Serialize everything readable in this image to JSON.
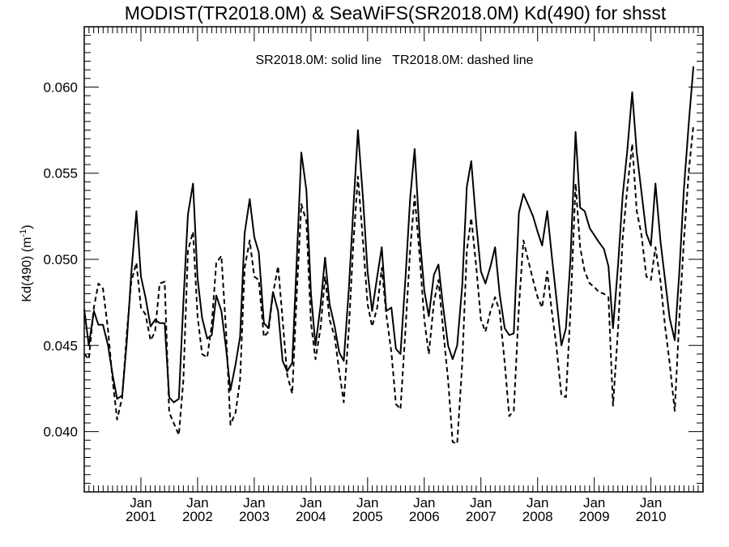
{
  "chart_data": {
    "type": "line",
    "title": "MODIST(TR2018.0M) & SeaWiFS(SR2018.0M)  Kd(490) for shsst",
    "legend_text": "SR2018.0M: solid line   TR2018.0M: dashed line",
    "ylabel": "Kd(490) (m",
    "ylabel_sup": "-1",
    "ylabel_close": ")",
    "ylim": [
      0.0365,
      0.0635
    ],
    "xlim": [
      2000.0,
      2010.92
    ],
    "y_ticks": [
      0.04,
      0.045,
      0.05,
      0.055,
      0.06
    ],
    "y_tick_labels": [
      "0.040",
      "0.045",
      "0.050",
      "0.055",
      "0.060"
    ],
    "x_ticks": [
      2001,
      2002,
      2003,
      2004,
      2005,
      2006,
      2007,
      2008,
      2009,
      2010
    ],
    "x_tick_month": "Jan",
    "x_tick_years": [
      "2001",
      "2002",
      "2003",
      "2004",
      "2005",
      "2006",
      "2007",
      "2008",
      "2009",
      "2010"
    ],
    "series": [
      {
        "style": "solid",
        "points": [
          [
            2000.0,
            0.0471
          ],
          [
            2000.08,
            0.045
          ],
          [
            2000.17,
            0.047
          ],
          [
            2000.25,
            0.0462
          ],
          [
            2000.33,
            0.0462
          ],
          [
            2000.42,
            0.045
          ],
          [
            2000.5,
            0.0433
          ],
          [
            2000.58,
            0.0419
          ],
          [
            2000.67,
            0.0421
          ],
          [
            2000.75,
            0.0452
          ],
          [
            2000.83,
            0.0492
          ],
          [
            2000.92,
            0.0528
          ],
          [
            2001.0,
            0.049
          ],
          [
            2001.08,
            0.0478
          ],
          [
            2001.17,
            0.0461
          ],
          [
            2001.25,
            0.0465
          ],
          [
            2001.33,
            0.0463
          ],
          [
            2001.42,
            0.0463
          ],
          [
            2001.5,
            0.042
          ],
          [
            2001.58,
            0.0417
          ],
          [
            2001.67,
            0.0419
          ],
          [
            2001.75,
            0.0475
          ],
          [
            2001.83,
            0.0526
          ],
          [
            2001.92,
            0.0544
          ],
          [
            2002.0,
            0.0489
          ],
          [
            2002.08,
            0.0466
          ],
          [
            2002.17,
            0.0454
          ],
          [
            2002.25,
            0.0456
          ],
          [
            2002.33,
            0.0479
          ],
          [
            2002.42,
            0.047
          ],
          [
            2002.5,
            0.0449
          ],
          [
            2002.58,
            0.0424
          ],
          [
            2002.67,
            0.0439
          ],
          [
            2002.75,
            0.0455
          ],
          [
            2002.83,
            0.0515
          ],
          [
            2002.92,
            0.0535
          ],
          [
            2003.0,
            0.0513
          ],
          [
            2003.08,
            0.0504
          ],
          [
            2003.17,
            0.0463
          ],
          [
            2003.25,
            0.046
          ],
          [
            2003.33,
            0.0481
          ],
          [
            2003.42,
            0.047
          ],
          [
            2003.5,
            0.0441
          ],
          [
            2003.58,
            0.0435
          ],
          [
            2003.67,
            0.044
          ],
          [
            2003.75,
            0.05
          ],
          [
            2003.83,
            0.0562
          ],
          [
            2003.92,
            0.054
          ],
          [
            2004.0,
            0.048
          ],
          [
            2004.08,
            0.045
          ],
          [
            2004.17,
            0.0473
          ],
          [
            2004.25,
            0.0501
          ],
          [
            2004.33,
            0.0474
          ],
          [
            2004.42,
            0.0461
          ],
          [
            2004.5,
            0.0446
          ],
          [
            2004.58,
            0.0441
          ],
          [
            2004.67,
            0.0483
          ],
          [
            2004.75,
            0.053
          ],
          [
            2004.83,
            0.0575
          ],
          [
            2004.92,
            0.0535
          ],
          [
            2005.0,
            0.0493
          ],
          [
            2005.08,
            0.047
          ],
          [
            2005.17,
            0.049
          ],
          [
            2005.25,
            0.0507
          ],
          [
            2005.33,
            0.047
          ],
          [
            2005.42,
            0.0472
          ],
          [
            2005.5,
            0.0448
          ],
          [
            2005.58,
            0.0445
          ],
          [
            2005.67,
            0.049
          ],
          [
            2005.75,
            0.0535
          ],
          [
            2005.83,
            0.0564
          ],
          [
            2005.92,
            0.0513
          ],
          [
            2006.0,
            0.0482
          ],
          [
            2006.08,
            0.0467
          ],
          [
            2006.17,
            0.0491
          ],
          [
            2006.25,
            0.0497
          ],
          [
            2006.33,
            0.0473
          ],
          [
            2006.42,
            0.045
          ],
          [
            2006.5,
            0.0442
          ],
          [
            2006.58,
            0.045
          ],
          [
            2006.67,
            0.0485
          ],
          [
            2006.75,
            0.0542
          ],
          [
            2006.83,
            0.0557
          ],
          [
            2006.92,
            0.052
          ],
          [
            2007.0,
            0.0493
          ],
          [
            2007.08,
            0.0486
          ],
          [
            2007.17,
            0.0496
          ],
          [
            2007.25,
            0.0507
          ],
          [
            2007.33,
            0.048
          ],
          [
            2007.42,
            0.046
          ],
          [
            2007.5,
            0.0456
          ],
          [
            2007.58,
            0.0457
          ],
          [
            2007.67,
            0.0527
          ],
          [
            2007.75,
            0.0538
          ],
          [
            2007.83,
            0.0532
          ],
          [
            2007.92,
            0.0525
          ],
          [
            2008.0,
            0.0516
          ],
          [
            2008.08,
            0.0508
          ],
          [
            2008.17,
            0.0528
          ],
          [
            2008.25,
            0.0502
          ],
          [
            2008.33,
            0.0478
          ],
          [
            2008.42,
            0.045
          ],
          [
            2008.5,
            0.046
          ],
          [
            2008.58,
            0.05
          ],
          [
            2008.67,
            0.0574
          ],
          [
            2008.75,
            0.053
          ],
          [
            2008.83,
            0.0528
          ],
          [
            2008.92,
            0.0518
          ],
          [
            2009.0,
            0.0514
          ],
          [
            2009.08,
            0.051
          ],
          [
            2009.17,
            0.0506
          ],
          [
            2009.25,
            0.0496
          ],
          [
            2009.33,
            0.046
          ],
          [
            2009.42,
            0.0497
          ],
          [
            2009.5,
            0.0537
          ],
          [
            2009.58,
            0.0562
          ],
          [
            2009.67,
            0.0597
          ],
          [
            2009.75,
            0.0562
          ],
          [
            2009.83,
            0.054
          ],
          [
            2009.92,
            0.0515
          ],
          [
            2010.0,
            0.0508
          ],
          [
            2010.08,
            0.0544
          ],
          [
            2010.17,
            0.051
          ],
          [
            2010.25,
            0.0488
          ],
          [
            2010.33,
            0.0466
          ],
          [
            2010.42,
            0.0453
          ],
          [
            2010.5,
            0.0492
          ],
          [
            2010.58,
            0.054
          ],
          [
            2010.67,
            0.058
          ],
          [
            2010.75,
            0.0612
          ]
        ]
      },
      {
        "style": "dashed",
        "points": [
          [
            2000.0,
            0.0445
          ],
          [
            2000.08,
            0.0442
          ],
          [
            2000.17,
            0.0472
          ],
          [
            2000.25,
            0.0486
          ],
          [
            2000.33,
            0.0483
          ],
          [
            2000.42,
            0.0459
          ],
          [
            2000.5,
            0.043
          ],
          [
            2000.58,
            0.0407
          ],
          [
            2000.67,
            0.042
          ],
          [
            2000.75,
            0.0457
          ],
          [
            2000.83,
            0.0487
          ],
          [
            2000.92,
            0.0498
          ],
          [
            2001.0,
            0.0472
          ],
          [
            2001.08,
            0.0468
          ],
          [
            2001.17,
            0.0453
          ],
          [
            2001.25,
            0.0458
          ],
          [
            2001.33,
            0.0486
          ],
          [
            2001.42,
            0.0487
          ],
          [
            2001.5,
            0.0411
          ],
          [
            2001.58,
            0.0405
          ],
          [
            2001.67,
            0.0398
          ],
          [
            2001.75,
            0.043
          ],
          [
            2001.83,
            0.0505
          ],
          [
            2001.92,
            0.0516
          ],
          [
            2002.0,
            0.0467
          ],
          [
            2002.08,
            0.0445
          ],
          [
            2002.17,
            0.0443
          ],
          [
            2002.25,
            0.0462
          ],
          [
            2002.33,
            0.0498
          ],
          [
            2002.42,
            0.0502
          ],
          [
            2002.5,
            0.046
          ],
          [
            2002.58,
            0.0404
          ],
          [
            2002.67,
            0.0411
          ],
          [
            2002.75,
            0.043
          ],
          [
            2002.83,
            0.0495
          ],
          [
            2002.92,
            0.0511
          ],
          [
            2003.0,
            0.049
          ],
          [
            2003.08,
            0.0488
          ],
          [
            2003.17,
            0.0455
          ],
          [
            2003.25,
            0.0458
          ],
          [
            2003.33,
            0.048
          ],
          [
            2003.42,
            0.0496
          ],
          [
            2003.5,
            0.0465
          ],
          [
            2003.58,
            0.0433
          ],
          [
            2003.67,
            0.0422
          ],
          [
            2003.75,
            0.048
          ],
          [
            2003.83,
            0.0532
          ],
          [
            2003.92,
            0.0522
          ],
          [
            2004.0,
            0.0463
          ],
          [
            2004.08,
            0.0442
          ],
          [
            2004.17,
            0.046
          ],
          [
            2004.25,
            0.049
          ],
          [
            2004.33,
            0.0465
          ],
          [
            2004.42,
            0.0455
          ],
          [
            2004.5,
            0.0435
          ],
          [
            2004.58,
            0.0417
          ],
          [
            2004.67,
            0.046
          ],
          [
            2004.75,
            0.051
          ],
          [
            2004.83,
            0.0548
          ],
          [
            2004.92,
            0.051
          ],
          [
            2005.0,
            0.0474
          ],
          [
            2005.08,
            0.0461
          ],
          [
            2005.17,
            0.0472
          ],
          [
            2005.25,
            0.0495
          ],
          [
            2005.33,
            0.0468
          ],
          [
            2005.42,
            0.0446
          ],
          [
            2005.5,
            0.0416
          ],
          [
            2005.58,
            0.0413
          ],
          [
            2005.67,
            0.046
          ],
          [
            2005.75,
            0.0505
          ],
          [
            2005.83,
            0.0537
          ],
          [
            2005.92,
            0.0501
          ],
          [
            2006.0,
            0.0465
          ],
          [
            2006.08,
            0.0445
          ],
          [
            2006.17,
            0.0475
          ],
          [
            2006.25,
            0.0488
          ],
          [
            2006.33,
            0.046
          ],
          [
            2006.42,
            0.043
          ],
          [
            2006.5,
            0.0394
          ],
          [
            2006.58,
            0.0393
          ],
          [
            2006.67,
            0.044
          ],
          [
            2006.75,
            0.0505
          ],
          [
            2006.83,
            0.0524
          ],
          [
            2006.92,
            0.0495
          ],
          [
            2007.0,
            0.0465
          ],
          [
            2007.08,
            0.0458
          ],
          [
            2007.17,
            0.047
          ],
          [
            2007.25,
            0.0478
          ],
          [
            2007.33,
            0.047
          ],
          [
            2007.42,
            0.044
          ],
          [
            2007.5,
            0.0409
          ],
          [
            2007.58,
            0.0412
          ],
          [
            2007.67,
            0.0472
          ],
          [
            2007.75,
            0.0511
          ],
          [
            2007.83,
            0.05
          ],
          [
            2007.92,
            0.0488
          ],
          [
            2008.0,
            0.0478
          ],
          [
            2008.08,
            0.0472
          ],
          [
            2008.17,
            0.0493
          ],
          [
            2008.25,
            0.047
          ],
          [
            2008.33,
            0.045
          ],
          [
            2008.42,
            0.0421
          ],
          [
            2008.5,
            0.042
          ],
          [
            2008.58,
            0.047
          ],
          [
            2008.67,
            0.0544
          ],
          [
            2008.75,
            0.0507
          ],
          [
            2008.83,
            0.0493
          ],
          [
            2008.92,
            0.0486
          ],
          [
            2009.0,
            0.0484
          ],
          [
            2009.08,
            0.0481
          ],
          [
            2009.17,
            0.048
          ],
          [
            2009.25,
            0.0478
          ],
          [
            2009.33,
            0.0415
          ],
          [
            2009.42,
            0.046
          ],
          [
            2009.5,
            0.0512
          ],
          [
            2009.58,
            0.054
          ],
          [
            2009.67,
            0.0567
          ],
          [
            2009.75,
            0.0528
          ],
          [
            2009.83,
            0.0515
          ],
          [
            2009.92,
            0.049
          ],
          [
            2010.0,
            0.0488
          ],
          [
            2010.08,
            0.0507
          ],
          [
            2010.17,
            0.0487
          ],
          [
            2010.25,
            0.0461
          ],
          [
            2010.33,
            0.044
          ],
          [
            2010.42,
            0.0412
          ],
          [
            2010.5,
            0.0465
          ],
          [
            2010.58,
            0.051
          ],
          [
            2010.67,
            0.0552
          ],
          [
            2010.75,
            0.0578
          ]
        ]
      }
    ]
  }
}
